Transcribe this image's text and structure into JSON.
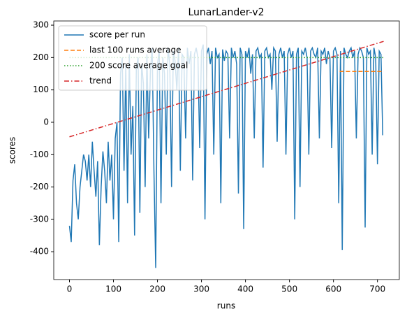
{
  "chart_data": {
    "type": "line",
    "title": "LunarLander-v2",
    "x_label": "runs",
    "y_label": "scores",
    "xlim": [
      -35.7,
      749.7
    ],
    "ylim": [
      -486,
      313
    ],
    "xticks": [
      0,
      100,
      200,
      300,
      400,
      500,
      600,
      700
    ],
    "yticks": [
      -400,
      -300,
      -200,
      -100,
      0,
      100,
      200,
      300
    ],
    "legend": "upper left",
    "series": [
      {
        "name": "score per run",
        "color": "#1f77b4",
        "dash": "solid",
        "x": [
          0,
          4,
          8,
          12,
          16,
          20,
          24,
          28,
          32,
          36,
          40,
          44,
          48,
          52,
          56,
          60,
          64,
          68,
          72,
          76,
          80,
          84,
          88,
          92,
          96,
          100,
          104,
          108,
          112,
          116,
          120,
          124,
          128,
          132,
          136,
          140,
          144,
          148,
          152,
          156,
          160,
          164,
          168,
          172,
          176,
          180,
          184,
          188,
          192,
          196,
          200,
          204,
          208,
          212,
          216,
          220,
          224,
          228,
          232,
          236,
          240,
          244,
          248,
          252,
          256,
          260,
          264,
          268,
          272,
          276,
          280,
          284,
          288,
          292,
          296,
          300,
          304,
          308,
          312,
          316,
          320,
          324,
          328,
          332,
          336,
          340,
          344,
          348,
          352,
          356,
          360,
          364,
          368,
          372,
          376,
          380,
          384,
          388,
          392,
          396,
          400,
          404,
          408,
          412,
          416,
          420,
          424,
          428,
          432,
          436,
          440,
          444,
          448,
          452,
          456,
          460,
          464,
          468,
          472,
          476,
          480,
          484,
          488,
          492,
          496,
          500,
          504,
          508,
          512,
          516,
          520,
          524,
          528,
          532,
          536,
          540,
          544,
          548,
          552,
          556,
          560,
          564,
          568,
          572,
          576,
          580,
          584,
          588,
          592,
          596,
          600,
          604,
          608,
          612,
          616,
          620,
          624,
          628,
          632,
          636,
          640,
          644,
          648,
          652,
          656,
          660,
          664,
          668,
          672,
          676,
          680,
          684,
          688,
          692,
          696,
          700,
          704,
          708,
          712
        ],
        "values": [
          -320,
          -370,
          -180,
          -130,
          -250,
          -300,
          -200,
          -150,
          -100,
          -120,
          -180,
          -100,
          -200,
          -60,
          -150,
          -230,
          -120,
          -380,
          -200,
          -90,
          -150,
          -250,
          -60,
          -180,
          -100,
          -300,
          -50,
          0,
          -370,
          150,
          200,
          -150,
          180,
          -250,
          210,
          -100,
          50,
          -350,
          170,
          200,
          -280,
          180,
          120,
          -200,
          210,
          -50,
          160,
          230,
          -150,
          -450,
          180,
          220,
          -250,
          200,
          150,
          -100,
          230,
          180,
          -200,
          220,
          190,
          100,
          230,
          -150,
          210,
          200,
          -50,
          230,
          180,
          220,
          -180,
          210,
          230,
          200,
          -80,
          220,
          240,
          -300,
          210,
          230,
          180,
          220,
          -100,
          230,
          200,
          210,
          -250,
          225,
          190,
          220,
          210,
          -50,
          230,
          200,
          220,
          180,
          -220,
          230,
          210,
          -330,
          220,
          200,
          230,
          150,
          210,
          -50,
          220,
          230,
          200,
          210,
          -140,
          220,
          230,
          200,
          210,
          100,
          230,
          220,
          -60,
          210,
          230,
          200,
          220,
          -100,
          210,
          230,
          200,
          220,
          -300,
          210,
          230,
          -200,
          220,
          210,
          230,
          200,
          -100,
          220,
          230,
          210,
          200,
          230,
          -50,
          220,
          210,
          230,
          180,
          220,
          200,
          -80,
          220,
          230,
          210,
          -250,
          220,
          -395,
          230,
          210,
          200,
          220,
          230,
          200,
          220,
          -50,
          210,
          230,
          220,
          200,
          -325,
          230,
          210,
          220,
          -100,
          230,
          200,
          -130,
          220,
          210,
          -40
        ]
      },
      {
        "name": "last 100 runs average",
        "color": "#ff7f0e",
        "dash": "dashed",
        "x": [
          614,
          714
        ],
        "values": [
          157,
          157
        ]
      },
      {
        "name": "200 score average goal",
        "color": "#2ca02c",
        "dash": "dotted",
        "x": [
          0,
          714
        ],
        "values": [
          200,
          200
        ]
      },
      {
        "name": "trend",
        "color": "#d62728",
        "dash": "dashdot",
        "x": [
          0,
          714
        ],
        "values": [
          -45,
          250
        ]
      }
    ]
  }
}
